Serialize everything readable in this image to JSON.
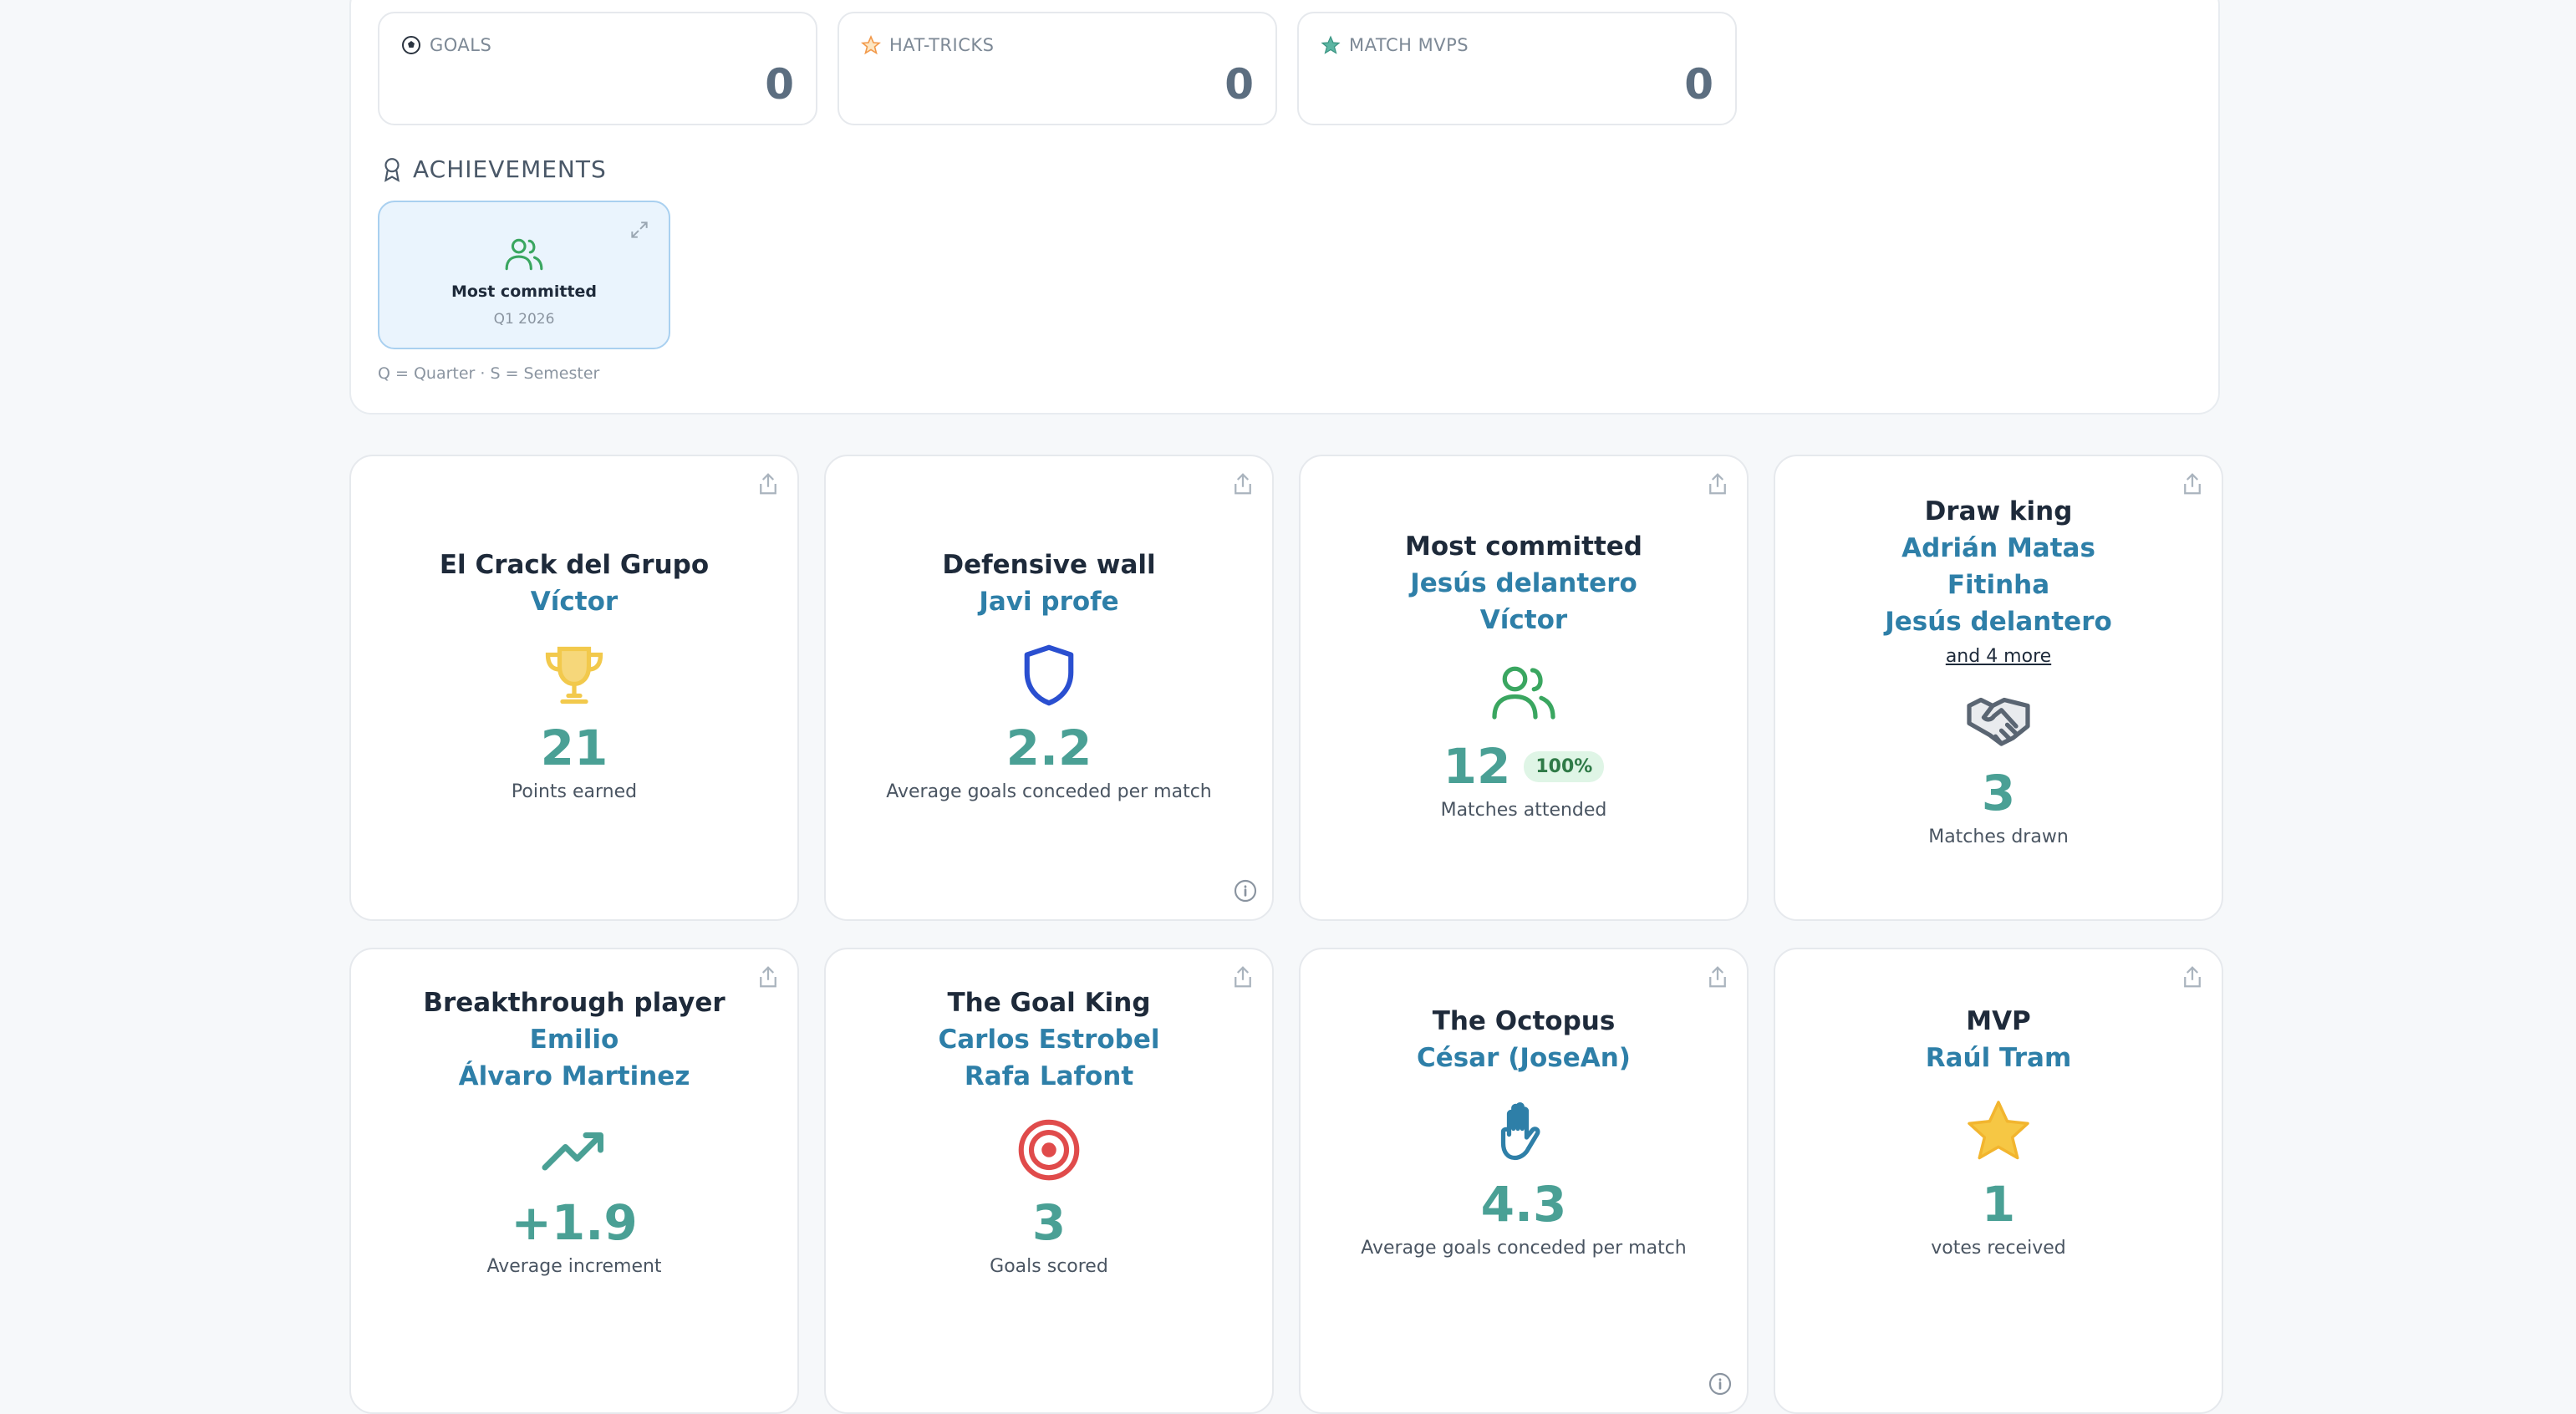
{
  "stats": [
    {
      "label": "GOALS",
      "value": "0",
      "icon": "soccer-ball-icon"
    },
    {
      "label": "HAT-TRICKS",
      "value": "0",
      "icon": "star-outline-icon"
    },
    {
      "label": "MATCH MVPS",
      "value": "0",
      "icon": "star-filled-icon"
    }
  ],
  "achievements": {
    "title": "ACHIEVEMENTS",
    "items": [
      {
        "name": "Most committed",
        "period": "Q1 2026",
        "icon": "people-icon"
      }
    ],
    "legend": "Q = Quarter  ·  S = Semester"
  },
  "colors": {
    "accent_blue": "#2e7fa8",
    "accent_teal": "#4aa095",
    "trophy_gold": "#f2c94c",
    "shield_blue": "#2a4fd0",
    "people_green": "#3aa660",
    "target_red": "#e04b4b"
  },
  "awards": [
    {
      "title": "El Crack del Grupo",
      "winners": [
        "Víctor"
      ],
      "icon": "trophy-icon",
      "value": "21",
      "caption": "Points earned"
    },
    {
      "title": "Defensive wall",
      "winners": [
        "Javi profe"
      ],
      "icon": "shield-icon",
      "value": "2.2",
      "caption": "Average goals conceded per match",
      "info": true
    },
    {
      "title": "Most committed",
      "winners": [
        "Jesús delantero",
        "Víctor"
      ],
      "icon": "people-icon",
      "value": "12",
      "badge": "100%",
      "caption": "Matches attended"
    },
    {
      "title": "Draw king",
      "winners": [
        "Adrián Matas",
        "Fitinha",
        "Jesús delantero"
      ],
      "more": "and 4 more",
      "icon": "handshake-icon",
      "value": "3",
      "caption": "Matches drawn"
    },
    {
      "title": "Breakthrough player",
      "winners": [
        "Emilio",
        "Álvaro Martinez"
      ],
      "icon": "trending-up-icon",
      "value": "+1.9",
      "caption": "Average increment"
    },
    {
      "title": "The Goal King",
      "winners": [
        "Carlos Estrobel",
        "Rafa Lafont"
      ],
      "icon": "target-icon",
      "value": "3",
      "caption": "Goals scored"
    },
    {
      "title": "The Octopus",
      "winners": [
        "César (JoseAn)"
      ],
      "icon": "hand-icon",
      "value": "4.3",
      "caption": "Average goals conceded per match",
      "info": true
    },
    {
      "title": "MVP",
      "winners": [
        "Raúl Tram"
      ],
      "icon": "star-icon",
      "value": "1",
      "caption": "votes received"
    }
  ]
}
